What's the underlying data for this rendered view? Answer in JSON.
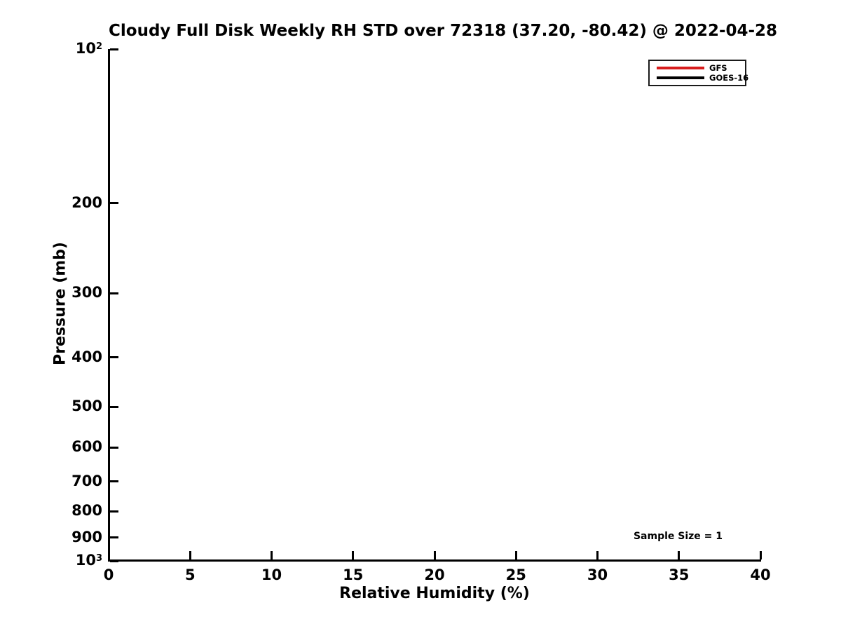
{
  "title": "Cloudy Full Disk Weekly RH STD over 72318 (37.20, -80.42) @ 2022-04-28",
  "annotation": {
    "sample_size_label": "Sample Size = 1"
  },
  "chart_data": {
    "type": "line",
    "title": "Cloudy Full Disk Weekly RH STD over 72318 (37.20, -80.42) @ 2022-04-28",
    "xlabel": "Relative Humidity (%)",
    "ylabel": "Pressure (mb)",
    "xlim": [
      0,
      40
    ],
    "ylim": [
      1000,
      100
    ],
    "y_scale": "log10",
    "y_axis_inverted": true,
    "grid": false,
    "x_ticks": [
      0,
      5,
      10,
      15,
      20,
      25,
      30,
      35,
      40
    ],
    "y_ticks": [
      {
        "value": 100,
        "label": "10^2"
      },
      {
        "value": 200,
        "label": "200"
      },
      {
        "value": 300,
        "label": "300"
      },
      {
        "value": 400,
        "label": "400"
      },
      {
        "value": 500,
        "label": "500"
      },
      {
        "value": 600,
        "label": "600"
      },
      {
        "value": 700,
        "label": "700"
      },
      {
        "value": 800,
        "label": "800"
      },
      {
        "value": 900,
        "label": "900"
      },
      {
        "value": 1000,
        "label": "10^3"
      }
    ],
    "legend": {
      "position": "upper-right",
      "entries": [
        {
          "name": "GFS",
          "color": "#d81e1e"
        },
        {
          "name": "GOES-16",
          "color": "#000000"
        }
      ]
    },
    "series": [
      {
        "name": "GFS",
        "color": "#d81e1e",
        "points": []
      },
      {
        "name": "GOES-16",
        "color": "#000000",
        "points": []
      }
    ],
    "annotations": [
      {
        "text": "Sample Size = 1",
        "x": 35,
        "pressure_mb": 900
      }
    ]
  }
}
